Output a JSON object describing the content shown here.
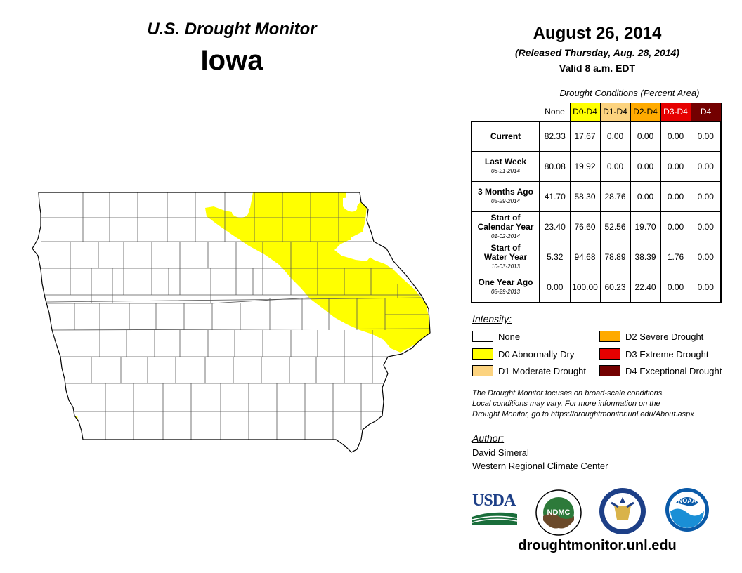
{
  "header": {
    "title": "U.S. Drought Monitor",
    "state": "Iowa",
    "date": "August 26, 2014",
    "released": "(Released Thursday, Aug. 28, 2014)",
    "valid": "Valid 8 a.m. EDT"
  },
  "table": {
    "caption": "Drought Conditions (Percent Area)",
    "columns": [
      {
        "label": "None",
        "color": "#ffffff",
        "text_color": "#000000"
      },
      {
        "label": "D0-D4",
        "color": "#ffff00",
        "text_color": "#000000"
      },
      {
        "label": "D1-D4",
        "color": "#fcd37f",
        "text_color": "#000000"
      },
      {
        "label": "D2-D4",
        "color": "#ffaa00",
        "text_color": "#000000"
      },
      {
        "label": "D3-D4",
        "color": "#e60000",
        "text_color": "#ffffff"
      },
      {
        "label": "D4",
        "color": "#730000",
        "text_color": "#ffffff"
      }
    ],
    "rows": [
      {
        "label": "Current",
        "label2": "",
        "date": "",
        "values": [
          "82.33",
          "17.67",
          "0.00",
          "0.00",
          "0.00",
          "0.00"
        ]
      },
      {
        "label": "Last Week",
        "label2": "",
        "date": "08-21-2014",
        "values": [
          "80.08",
          "19.92",
          "0.00",
          "0.00",
          "0.00",
          "0.00"
        ]
      },
      {
        "label": "3 Months Ago",
        "label2": "",
        "date": "05-29-2014",
        "values": [
          "41.70",
          "58.30",
          "28.76",
          "0.00",
          "0.00",
          "0.00"
        ]
      },
      {
        "label": "Start of",
        "label2": "Calendar Year",
        "date": "01-02-2014",
        "values": [
          "23.40",
          "76.60",
          "52.56",
          "19.70",
          "0.00",
          "0.00"
        ]
      },
      {
        "label": "Start of",
        "label2": "Water Year",
        "date": "10-03-2013",
        "values": [
          "5.32",
          "94.68",
          "78.89",
          "38.39",
          "1.76",
          "0.00"
        ]
      },
      {
        "label": "One Year Ago",
        "label2": "",
        "date": "08-29-2013",
        "values": [
          "0.00",
          "100.00",
          "60.23",
          "22.40",
          "0.00",
          "0.00"
        ]
      }
    ]
  },
  "legend": {
    "title": "Intensity:",
    "items": [
      {
        "label": "None",
        "color": "#ffffff"
      },
      {
        "label": "D0 Abnormally Dry",
        "color": "#ffff00"
      },
      {
        "label": "D1 Moderate Drought",
        "color": "#fcd37f"
      },
      {
        "label": "D2 Severe Drought",
        "color": "#ffaa00"
      },
      {
        "label": "D3 Extreme Drought",
        "color": "#e60000"
      },
      {
        "label": "D4 Exceptional Drought",
        "color": "#730000"
      }
    ]
  },
  "disclaimer": {
    "line1": "The Drought Monitor focuses on broad-scale conditions.",
    "line2": "Local conditions may vary. For more information on the",
    "line3": "Drought Monitor, go to https://droughtmonitor.unl.edu/About.aspx"
  },
  "author": {
    "title": "Author:",
    "name": "David Simeral",
    "org": "Western Regional Climate Center"
  },
  "logos": {
    "usda": "USDA",
    "ndmc": "NDMC",
    "noaa": "NOAA"
  },
  "website": "droughtmonitor.unl.edu",
  "map": {
    "region": "Iowa",
    "drought_category_shown": "D0 Abnormally Dry",
    "fill_color": "#ffff00",
    "boundary_color": "#000000"
  }
}
